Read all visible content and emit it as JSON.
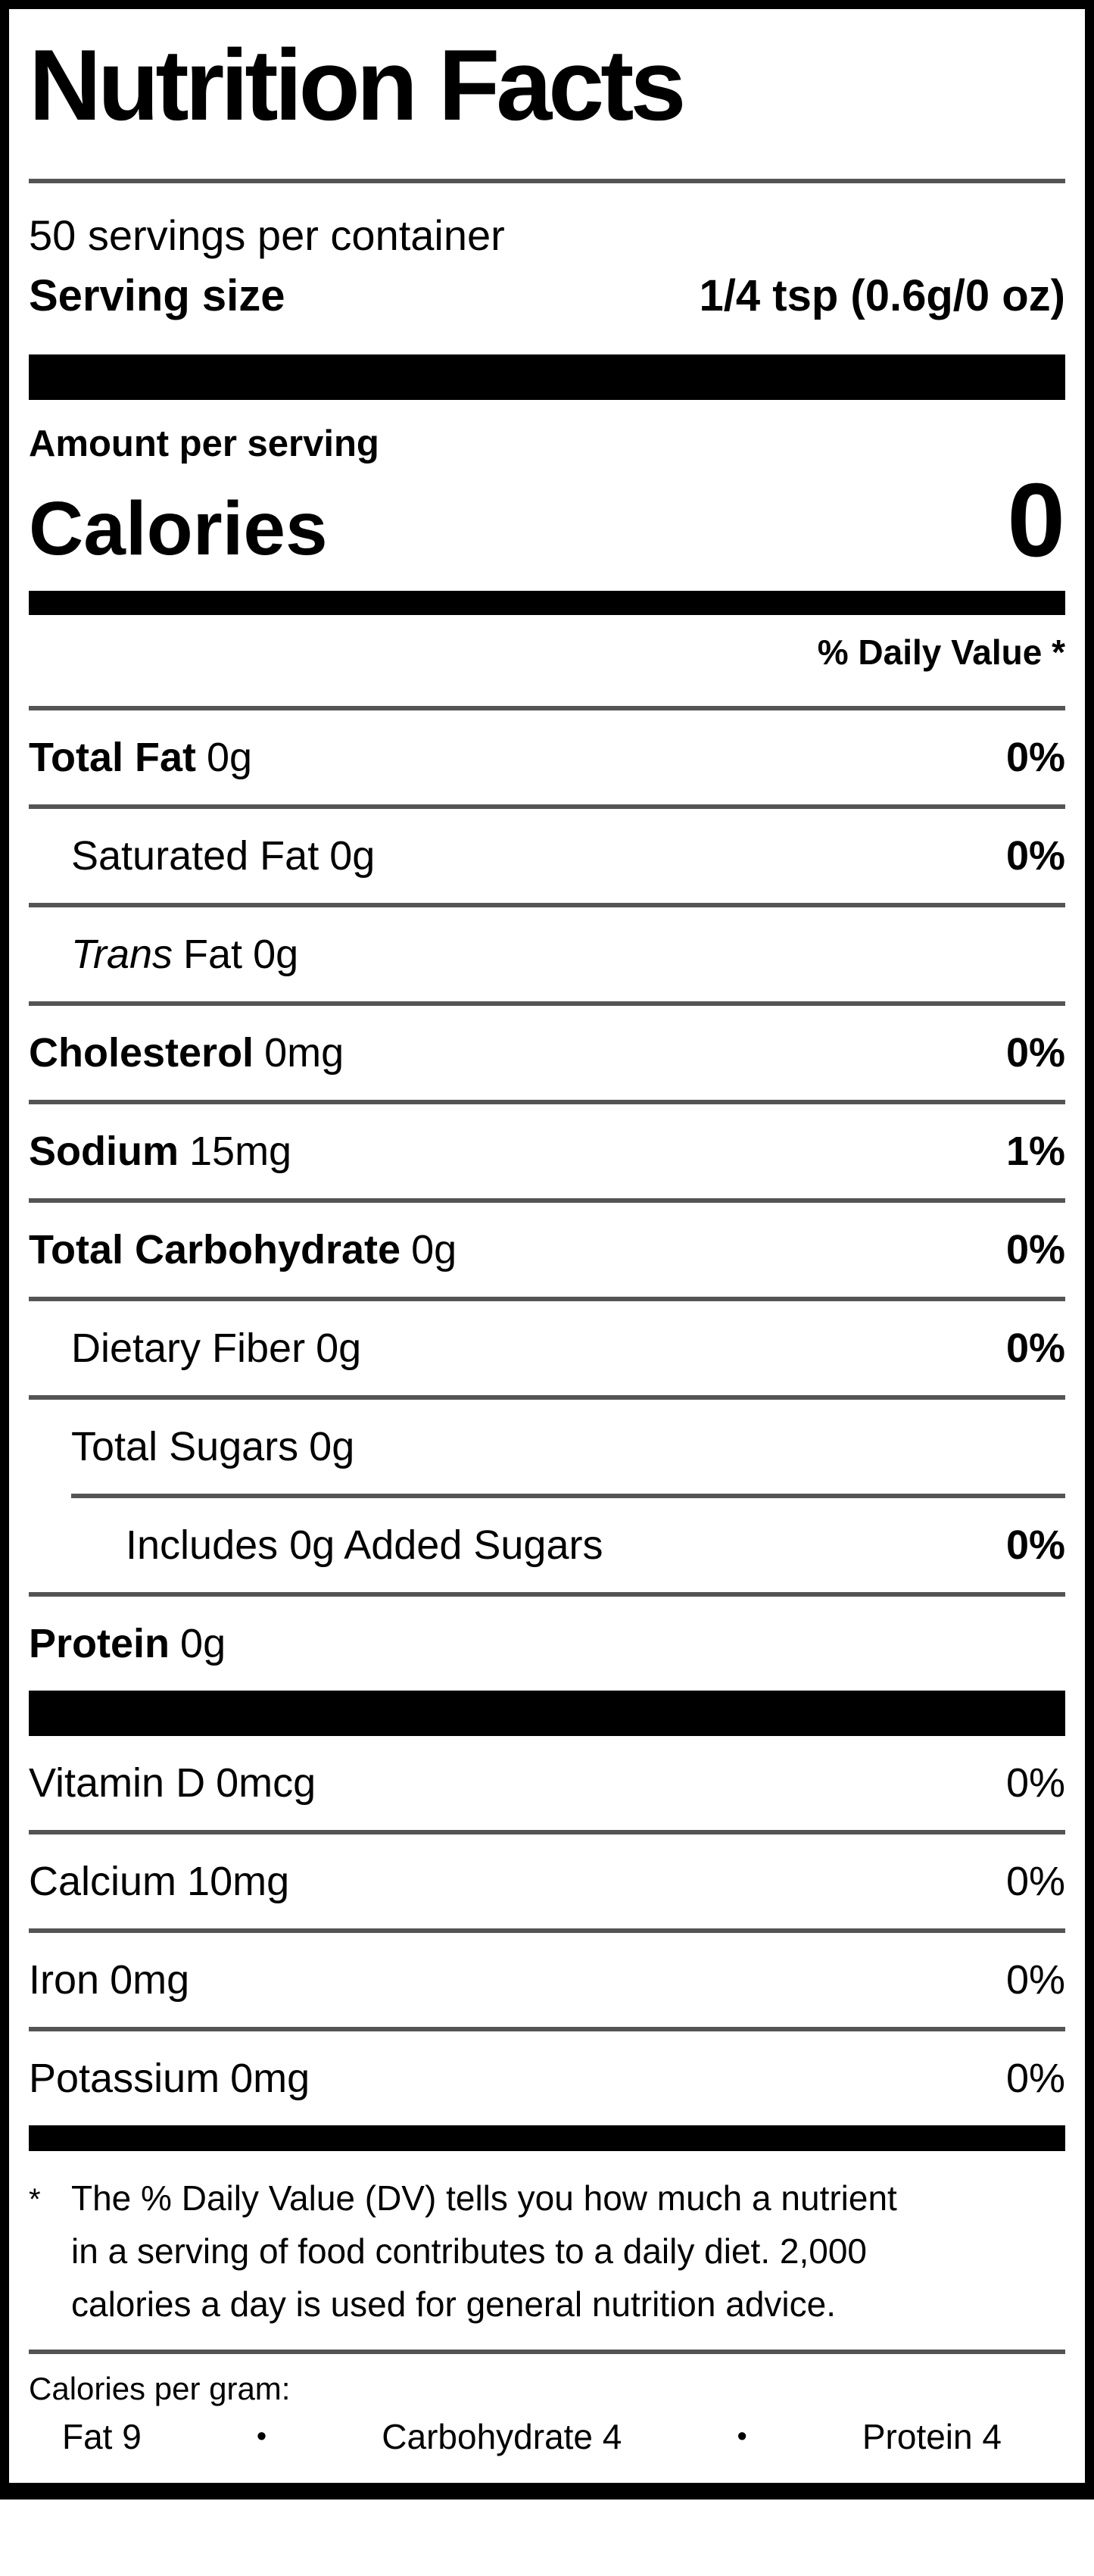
{
  "colors": {
    "background": "#ffffff",
    "text": "#000000",
    "bar": "#000000",
    "rule": "#545454"
  },
  "label": {
    "title": "Nutrition Facts",
    "servings_per_container": "50 servings per container",
    "serving_size": {
      "label": "Serving size",
      "value": "1/4 tsp (0.6g/0 oz)"
    },
    "amount_per_serving": "Amount per serving",
    "calories": {
      "label": "Calories",
      "value": "0"
    },
    "daily_value_header": "% Daily Value *",
    "rows": [
      {
        "name": "Total Fat",
        "amount": "0g",
        "dv": "0%"
      },
      {
        "name": "Saturated Fat",
        "amount": "0g",
        "dv": "0%"
      },
      {
        "name_italic": "Trans",
        "name": "Fat",
        "amount": "0g",
        "dv": ""
      },
      {
        "name": "Cholesterol",
        "amount": "0mg",
        "dv": "0%"
      },
      {
        "name": "Sodium",
        "amount": "15mg",
        "dv": "1%"
      },
      {
        "name": "Total Carbohydrate",
        "amount": "0g",
        "dv": "0%"
      },
      {
        "name": "Dietary Fiber",
        "amount": "0g",
        "dv": "0%"
      },
      {
        "name": "Total Sugars",
        "amount": "0g",
        "dv": ""
      },
      {
        "name": "Includes 0g Added Sugars",
        "amount": "",
        "dv": "0%"
      },
      {
        "name": "Protein",
        "amount": "0g",
        "dv": ""
      }
    ],
    "vitamin_rows": [
      {
        "name": "Vitamin D",
        "amount": "0mcg",
        "dv": "0%"
      },
      {
        "name": "Calcium",
        "amount": "10mg",
        "dv": "0%"
      },
      {
        "name": "Iron",
        "amount": "0mg",
        "dv": "0%"
      },
      {
        "name": "Potassium",
        "amount": "0mg",
        "dv": "0%"
      }
    ],
    "footnote": {
      "marker": "*",
      "text": "The % Daily Value (DV) tells you how much a nutrient in a serving of food contributes to a daily diet. 2,000 calories a day is used for general nutrition advice."
    },
    "calories_per_gram": {
      "heading": "Calories per gram:",
      "separator": "•",
      "items": [
        "Fat 9",
        "Carbohydrate 4",
        "Protein 4"
      ]
    }
  }
}
